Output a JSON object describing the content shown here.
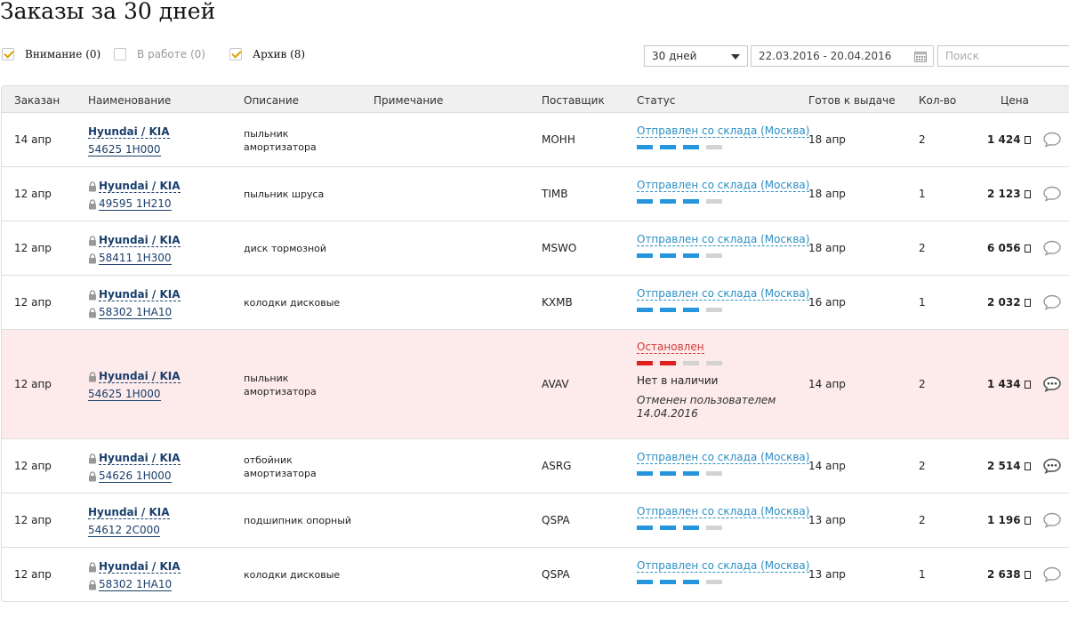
{
  "page": {
    "title": "Заказы за 30 дней"
  },
  "filters": {
    "attention": {
      "label": "Внимание (0)",
      "checked": true
    },
    "in_work": {
      "label": "В работе (0)",
      "checked": false
    },
    "archive": {
      "label": "Архив (8)",
      "checked": true
    },
    "period": "30 дней",
    "date_range": "22.03.2016 - 20.04.2016",
    "search_placeholder": "Поиск"
  },
  "table": {
    "headers": {
      "ordered": "Заказан",
      "name": "Наименование",
      "description": "Описание",
      "note": "Примечание",
      "supplier": "Поставщик",
      "status": "Статус",
      "ready": "Готов к выдаче",
      "qty": "Кол-во",
      "price": "Цена"
    },
    "rows": [
      {
        "date": "14 апр",
        "brand": "Hyundai / KIA",
        "part": "54625 1H000",
        "locked_brand": false,
        "locked_part": false,
        "desc1": "пыльник",
        "desc2": "амортизатора",
        "supplier": "MOHH",
        "status": "Отправлен со склада (Москва)",
        "progress": "3/4",
        "ready": "18 апр",
        "qty": "2",
        "price": "1 424"
      },
      {
        "date": "12 апр",
        "brand": "Hyundai / KIA",
        "part": "49595 1H210",
        "locked_brand": true,
        "locked_part": true,
        "desc1": "пыльник шруса",
        "desc2": "",
        "supplier": "TIMB",
        "status": "Отправлен со склада (Москва)",
        "progress": "3/4",
        "ready": "18 апр",
        "qty": "1",
        "price": "2 123"
      },
      {
        "date": "12 апр",
        "brand": "Hyundai / KIA",
        "part": "58411 1H300",
        "locked_brand": true,
        "locked_part": true,
        "desc1": "диск тормозной",
        "desc2": "",
        "supplier": "MSWO",
        "status": "Отправлен со склада (Москва)",
        "progress": "3/4",
        "ready": "18 апр",
        "qty": "2",
        "price": "6 056"
      },
      {
        "date": "12 апр",
        "brand": "Hyundai / KIA",
        "part": "58302 1HA10",
        "locked_brand": true,
        "locked_part": true,
        "desc1": "колодки дисковые",
        "desc2": "",
        "supplier": "KXMB",
        "status": "Отправлен со склада (Москва)",
        "progress": "3/4",
        "ready": "16 апр",
        "qty": "1",
        "price": "2 032"
      },
      {
        "date": "12 апр",
        "brand": "Hyundai / KIA",
        "part": "54625 1H000",
        "locked_brand": true,
        "locked_part": false,
        "desc1": "пыльник",
        "desc2": "амортизатора",
        "supplier": "AVAV",
        "status": "Остановлен",
        "progress": "2/4",
        "status_note": "Нет в наличии",
        "status_note2": "Отменен пользователем 14.04.2016",
        "ready": "14 апр",
        "qty": "2",
        "price": "1 434"
      },
      {
        "date": "12 апр",
        "brand": "Hyundai / KIA",
        "part": "54626 1H000",
        "locked_brand": true,
        "locked_part": true,
        "desc1": "отбойник",
        "desc2": "амортизатора",
        "supplier": "ASRG",
        "status": "Отправлен со склада (Москва)",
        "progress": "3/4",
        "ready": "14 апр",
        "qty": "2",
        "price": "2 514"
      },
      {
        "date": "12 апр",
        "brand": "Hyundai / KIA",
        "part": "54612 2C000",
        "locked_brand": false,
        "locked_part": false,
        "desc1": "подшипник опорный",
        "desc2": "",
        "supplier": "QSPA",
        "status": "Отправлен со склада (Москва)",
        "progress": "3/4",
        "ready": "13 апр",
        "qty": "2",
        "price": "1 196"
      },
      {
        "date": "12 апр",
        "brand": "Hyundai / KIA",
        "part": "58302 1HA10",
        "locked_brand": true,
        "locked_part": true,
        "desc1": "колодки дисковые",
        "desc2": "",
        "supplier": "QSPA",
        "status": "Отправлен со склада (Москва)",
        "progress": "3/4",
        "ready": "13 апр",
        "qty": "1",
        "price": "2 638"
      }
    ]
  },
  "colors": {
    "status_shipped": "#2b8fc4",
    "status_stopped": "#d23b3b",
    "progress_on": "#2596dd",
    "progress_stopped": "#e02020",
    "row_stopped_bg": "#fdeaea"
  },
  "icons": {
    "lock": "lock-icon",
    "chat": "chat-icon",
    "chat_active": "chat-dots-icon",
    "calendar": "calendar-icon",
    "currency": "currency-icon"
  }
}
